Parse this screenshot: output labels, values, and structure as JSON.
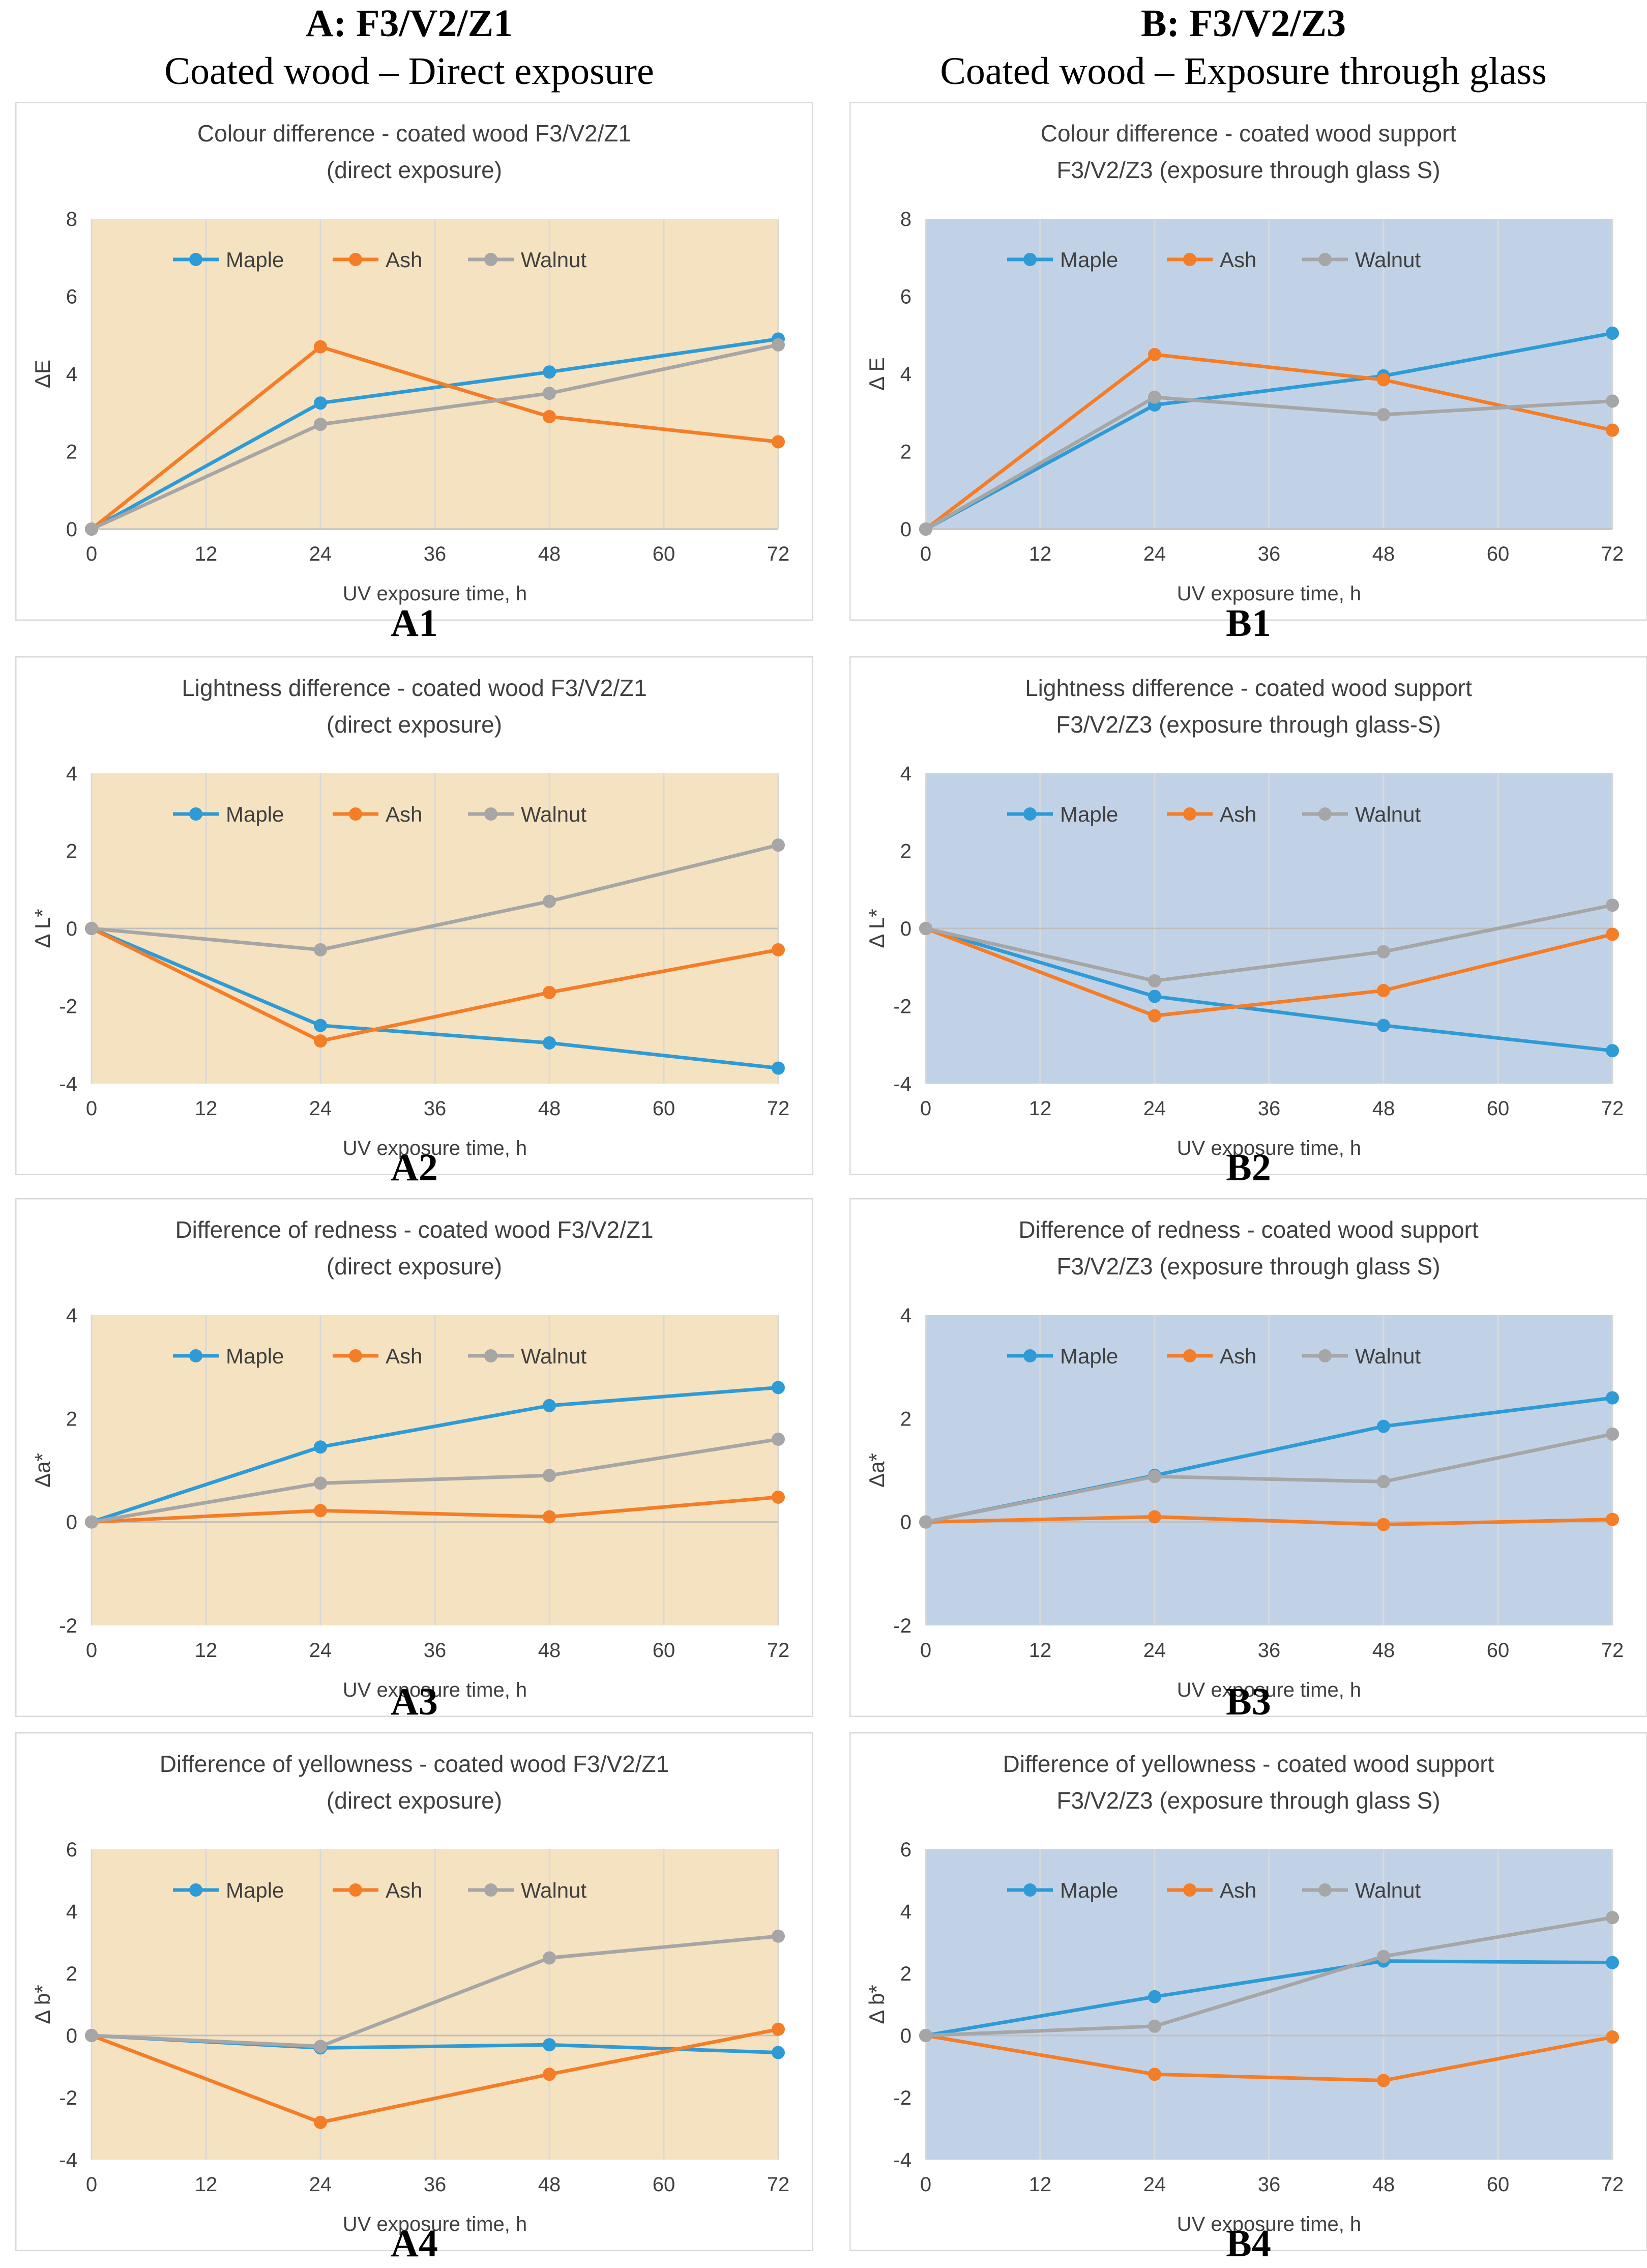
{
  "columns": [
    {
      "heading": "A: F3/V2/Z1",
      "subheading": "Coated wood – Direct exposure"
    },
    {
      "heading": "B: F3/V2/Z3",
      "subheading": "Coated wood – Exposure through glass"
    }
  ],
  "colors": {
    "maple": "#2e9bd6",
    "ash": "#f47d28",
    "walnut": "#a6a6a6",
    "bg_direct": "#f5e2c0",
    "bg_glass": "#c2d2e6"
  },
  "chart_data": [
    {
      "id": "A1",
      "type": "line",
      "panel_label": "A1",
      "theme": "direct",
      "title_lines": [
        "Colour difference - coated wood F3/V2/Z1",
        "(direct exposure)"
      ],
      "xlabel": "UV exposure time, h",
      "ylabel": "ΔE",
      "x": [
        0,
        24,
        48,
        72
      ],
      "xticks": [
        0,
        12,
        24,
        36,
        48,
        60,
        72
      ],
      "xlim": [
        0,
        72
      ],
      "ylim": [
        0,
        8
      ],
      "yticks": [
        0,
        2,
        4,
        6,
        8
      ],
      "series": [
        {
          "name": "Maple",
          "values": [
            0,
            3.25,
            4.05,
            4.9
          ]
        },
        {
          "name": "Ash",
          "values": [
            0,
            4.7,
            2.9,
            2.25
          ]
        },
        {
          "name": "Walnut",
          "values": [
            0,
            2.7,
            3.5,
            4.75
          ]
        }
      ]
    },
    {
      "id": "B1",
      "type": "line",
      "panel_label": "B1",
      "theme": "glass",
      "title_lines": [
        "Colour difference - coated wood support",
        "F3/V2/Z3 (exposure through glass S)"
      ],
      "xlabel": "UV exposure time, h",
      "ylabel": "Δ E",
      "x": [
        0,
        24,
        48,
        72
      ],
      "xticks": [
        0,
        12,
        24,
        36,
        48,
        60,
        72
      ],
      "xlim": [
        0,
        72
      ],
      "ylim": [
        0,
        8
      ],
      "yticks": [
        0,
        2,
        4,
        6,
        8
      ],
      "series": [
        {
          "name": "Maple",
          "values": [
            0,
            3.2,
            3.95,
            5.05
          ]
        },
        {
          "name": "Ash",
          "values": [
            0,
            4.5,
            3.85,
            2.55
          ]
        },
        {
          "name": "Walnut",
          "values": [
            0,
            3.4,
            2.95,
            3.3
          ]
        }
      ]
    },
    {
      "id": "A2",
      "type": "line",
      "panel_label": "A2",
      "theme": "direct",
      "title_lines": [
        "Lightness difference - coated wood F3/V2/Z1",
        "(direct exposure)"
      ],
      "xlabel": "UV exposure time, h",
      "ylabel": "Δ L*",
      "x": [
        0,
        24,
        48,
        72
      ],
      "xticks": [
        0,
        12,
        24,
        36,
        48,
        60,
        72
      ],
      "xlim": [
        0,
        72
      ],
      "ylim": [
        -4,
        4
      ],
      "yticks": [
        -4,
        -2,
        0,
        2,
        4
      ],
      "series": [
        {
          "name": "Maple",
          "values": [
            0,
            -2.5,
            -2.95,
            -3.6
          ]
        },
        {
          "name": "Ash",
          "values": [
            0,
            -2.9,
            -1.65,
            -0.55
          ]
        },
        {
          "name": "Walnut",
          "values": [
            0,
            -0.55,
            0.7,
            2.15
          ]
        }
      ]
    },
    {
      "id": "B2",
      "type": "line",
      "panel_label": "B2",
      "theme": "glass",
      "title_lines": [
        "Lightness difference - coated wood support",
        "F3/V2/Z3 (exposure through glass-S)"
      ],
      "xlabel": "UV exposure time, h",
      "ylabel": "Δ L*",
      "x": [
        0,
        24,
        48,
        72
      ],
      "xticks": [
        0,
        12,
        24,
        36,
        48,
        60,
        72
      ],
      "xlim": [
        0,
        72
      ],
      "ylim": [
        -4,
        4
      ],
      "yticks": [
        -4,
        -2,
        0,
        2,
        4
      ],
      "series": [
        {
          "name": "Maple",
          "values": [
            0,
            -1.75,
            -2.5,
            -3.15
          ]
        },
        {
          "name": "Ash",
          "values": [
            0,
            -2.25,
            -1.6,
            -0.15
          ]
        },
        {
          "name": "Walnut",
          "values": [
            0,
            -1.35,
            -0.6,
            0.6
          ]
        }
      ]
    },
    {
      "id": "A3",
      "type": "line",
      "panel_label": "A3",
      "theme": "direct",
      "title_lines": [
        "Difference of redness - coated wood F3/V2/Z1",
        "(direct exposure)"
      ],
      "xlabel": "UV exposure time, h",
      "ylabel": "Δa*",
      "x": [
        0,
        24,
        48,
        72
      ],
      "xticks": [
        0,
        12,
        24,
        36,
        48,
        60,
        72
      ],
      "xlim": [
        0,
        72
      ],
      "ylim": [
        -2,
        4
      ],
      "yticks": [
        -2,
        0,
        2,
        4
      ],
      "series": [
        {
          "name": "Maple",
          "values": [
            0,
            1.45,
            2.25,
            2.6
          ]
        },
        {
          "name": "Ash",
          "values": [
            0,
            0.22,
            0.1,
            0.48
          ]
        },
        {
          "name": "Walnut",
          "values": [
            0,
            0.75,
            0.9,
            1.6
          ]
        }
      ]
    },
    {
      "id": "B3",
      "type": "line",
      "panel_label": "B3",
      "theme": "glass",
      "title_lines": [
        "Difference of redness - coated wood support",
        "F3/V2/Z3 (exposure through glass S)"
      ],
      "xlabel": "UV exposure time, h",
      "ylabel": "Δa*",
      "x": [
        0,
        24,
        48,
        72
      ],
      "xticks": [
        0,
        12,
        24,
        36,
        48,
        60,
        72
      ],
      "xlim": [
        0,
        72
      ],
      "ylim": [
        -2,
        4
      ],
      "yticks": [
        -2,
        0,
        2,
        4
      ],
      "series": [
        {
          "name": "Maple",
          "values": [
            0,
            0.9,
            1.85,
            2.4
          ]
        },
        {
          "name": "Ash",
          "values": [
            0,
            0.1,
            -0.05,
            0.05
          ]
        },
        {
          "name": "Walnut",
          "values": [
            0,
            0.88,
            0.78,
            1.7
          ]
        }
      ]
    },
    {
      "id": "A4",
      "type": "line",
      "panel_label": "A4",
      "theme": "direct",
      "title_lines": [
        "Difference of yellowness - coated wood F3/V2/Z1",
        "(direct exposure)"
      ],
      "xlabel": "UV exposure time, h",
      "ylabel": "Δ b*",
      "x": [
        0,
        24,
        48,
        72
      ],
      "xticks": [
        0,
        12,
        24,
        36,
        48,
        60,
        72
      ],
      "xlim": [
        0,
        72
      ],
      "ylim": [
        -4,
        6
      ],
      "yticks": [
        -4,
        -2,
        0,
        2,
        4,
        6
      ],
      "series": [
        {
          "name": "Maple",
          "values": [
            0,
            -0.4,
            -0.3,
            -0.55
          ]
        },
        {
          "name": "Ash",
          "values": [
            0,
            -2.8,
            -1.25,
            0.2
          ]
        },
        {
          "name": "Walnut",
          "values": [
            0,
            -0.35,
            2.5,
            3.2
          ]
        }
      ]
    },
    {
      "id": "B4",
      "type": "line",
      "panel_label": "B4",
      "theme": "glass",
      "title_lines": [
        "Difference of yellowness - coated wood support",
        "F3/V2/Z3 (exposure through glass S)"
      ],
      "xlabel": "UV exposure time, h",
      "ylabel": "Δ b*",
      "x": [
        0,
        24,
        48,
        72
      ],
      "xticks": [
        0,
        12,
        24,
        36,
        48,
        60,
        72
      ],
      "xlim": [
        0,
        72
      ],
      "ylim": [
        -4,
        6
      ],
      "yticks": [
        -4,
        -2,
        0,
        2,
        4,
        6
      ],
      "series": [
        {
          "name": "Maple",
          "values": [
            0,
            1.25,
            2.4,
            2.35
          ]
        },
        {
          "name": "Ash",
          "values": [
            0,
            -1.25,
            -1.45,
            -0.05
          ]
        },
        {
          "name": "Walnut",
          "values": [
            0,
            0.3,
            2.55,
            3.8
          ]
        }
      ]
    }
  ]
}
